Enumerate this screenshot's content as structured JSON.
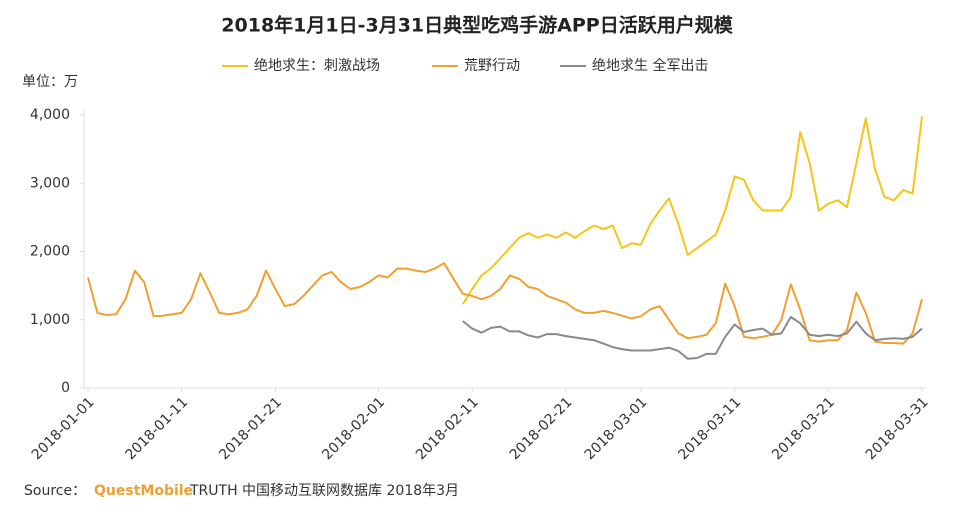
{
  "chart_data": {
    "type": "line",
    "title": "2018年1月1日-3月31日典型吃鸡手游APP日活跃用户规模",
    "unit_label": "单位：万",
    "source": {
      "prefix": "Source：",
      "brand": "QuestMobile",
      "text": "TRUTH 中国移动互联网数据库 2018年3月"
    },
    "x": [
      "2018-01-01",
      "2018-01-02",
      "2018-01-03",
      "2018-01-04",
      "2018-01-05",
      "2018-01-06",
      "2018-01-07",
      "2018-01-08",
      "2018-01-09",
      "2018-01-10",
      "2018-01-11",
      "2018-01-12",
      "2018-01-13",
      "2018-01-14",
      "2018-01-15",
      "2018-01-16",
      "2018-01-17",
      "2018-01-18",
      "2018-01-19",
      "2018-01-20",
      "2018-01-21",
      "2018-01-22",
      "2018-01-23",
      "2018-01-24",
      "2018-01-25",
      "2018-01-26",
      "2018-01-27",
      "2018-01-28",
      "2018-01-29",
      "2018-01-30",
      "2018-01-31",
      "2018-02-01",
      "2018-02-02",
      "2018-02-03",
      "2018-02-04",
      "2018-02-05",
      "2018-02-06",
      "2018-02-07",
      "2018-02-08",
      "2018-02-09",
      "2018-02-10",
      "2018-02-11",
      "2018-02-12",
      "2018-02-13",
      "2018-02-14",
      "2018-02-15",
      "2018-02-16",
      "2018-02-17",
      "2018-02-18",
      "2018-02-19",
      "2018-02-20",
      "2018-02-21",
      "2018-02-22",
      "2018-02-23",
      "2018-02-24",
      "2018-02-25",
      "2018-02-26",
      "2018-02-27",
      "2018-02-28",
      "2018-03-01",
      "2018-03-02",
      "2018-03-03",
      "2018-03-04",
      "2018-03-05",
      "2018-03-06",
      "2018-03-07",
      "2018-03-08",
      "2018-03-09",
      "2018-03-10",
      "2018-03-11",
      "2018-03-12",
      "2018-03-13",
      "2018-03-14",
      "2018-03-15",
      "2018-03-16",
      "2018-03-17",
      "2018-03-18",
      "2018-03-19",
      "2018-03-20",
      "2018-03-21",
      "2018-03-22",
      "2018-03-23",
      "2018-03-24",
      "2018-03-25",
      "2018-03-26",
      "2018-03-27",
      "2018-03-28",
      "2018-03-29",
      "2018-03-30",
      "2018-03-31"
    ],
    "series": [
      {
        "name": "绝地求生：刺激战场",
        "color": "#f5c518",
        "values": [
          null,
          null,
          null,
          null,
          null,
          null,
          null,
          null,
          null,
          null,
          null,
          null,
          null,
          null,
          null,
          null,
          null,
          null,
          null,
          null,
          null,
          null,
          null,
          null,
          null,
          null,
          null,
          null,
          null,
          null,
          null,
          null,
          null,
          null,
          null,
          null,
          null,
          null,
          null,
          null,
          1230,
          1450,
          1650,
          1750,
          1900,
          2050,
          2200,
          2270,
          2200,
          2250,
          2200,
          2280,
          2200,
          2300,
          2380,
          2330,
          2380,
          2050,
          2120,
          2100,
          2400,
          2600,
          2780,
          2400,
          1950,
          2050,
          2150,
          2250,
          2600,
          3100,
          3050,
          2750,
          2600,
          2600,
          2600,
          2800,
          3750,
          3300,
          2600,
          2700,
          2750,
          2650,
          3300,
          3950,
          3200,
          2800,
          2750,
          2900,
          2850,
          3980
        ]
      },
      {
        "name": "荒野行动",
        "color": "#f0a030",
        "values": [
          1620,
          1100,
          1070,
          1080,
          1300,
          1720,
          1550,
          1050,
          1060,
          1080,
          1100,
          1300,
          1680,
          1400,
          1100,
          1080,
          1100,
          1150,
          1350,
          1720,
          1450,
          1200,
          1230,
          1350,
          1500,
          1650,
          1700,
          1550,
          1450,
          1480,
          1550,
          1650,
          1620,
          1750,
          1750,
          1720,
          1700,
          1750,
          1830,
          1600,
          1380,
          1350,
          1300,
          1350,
          1450,
          1650,
          1600,
          1480,
          1450,
          1350,
          1300,
          1250,
          1150,
          1100,
          1100,
          1130,
          1100,
          1060,
          1020,
          1050,
          1150,
          1200,
          1000,
          800,
          730,
          750,
          780,
          950,
          1530,
          1200,
          750,
          730,
          750,
          780,
          1000,
          1520,
          1150,
          700,
          680,
          700,
          700,
          850,
          1400,
          1100,
          680,
          660,
          660,
          650,
          800,
          1300
        ]
      },
      {
        "name": "绝地求生 全军出击",
        "color": "#8a8a8a",
        "values": [
          null,
          null,
          null,
          null,
          null,
          null,
          null,
          null,
          null,
          null,
          null,
          null,
          null,
          null,
          null,
          null,
          null,
          null,
          null,
          null,
          null,
          null,
          null,
          null,
          null,
          null,
          null,
          null,
          null,
          null,
          null,
          null,
          null,
          null,
          null,
          null,
          null,
          null,
          null,
          null,
          980,
          870,
          810,
          880,
          900,
          830,
          830,
          770,
          740,
          790,
          790,
          760,
          740,
          720,
          700,
          650,
          600,
          570,
          550,
          550,
          550,
          570,
          590,
          540,
          430,
          440,
          500,
          500,
          750,
          930,
          820,
          850,
          870,
          780,
          800,
          1040,
          950,
          780,
          760,
          780,
          760,
          800,
          970,
          800,
          700,
          720,
          730,
          720,
          750,
          870
        ]
      }
    ],
    "ylim": [
      0,
      4000
    ],
    "yticks": [
      0,
      {
        "value": 1000,
        "label": "1,000"
      },
      {
        "value": 2000,
        "label": "2,000"
      },
      {
        "value": 3000,
        "label": "3,000"
      },
      {
        "value": 4000,
        "label": "4,000"
      }
    ],
    "xlim": [
      "2018-01-01",
      "2018-03-31"
    ],
    "xticks": [
      "2018-01-01",
      "2018-01-11",
      "2018-01-21",
      "2018-02-01",
      "2018-02-11",
      "2018-02-21",
      "2018-03-01",
      "2018-03-11",
      "2018-03-21",
      "2018-03-31"
    ]
  }
}
